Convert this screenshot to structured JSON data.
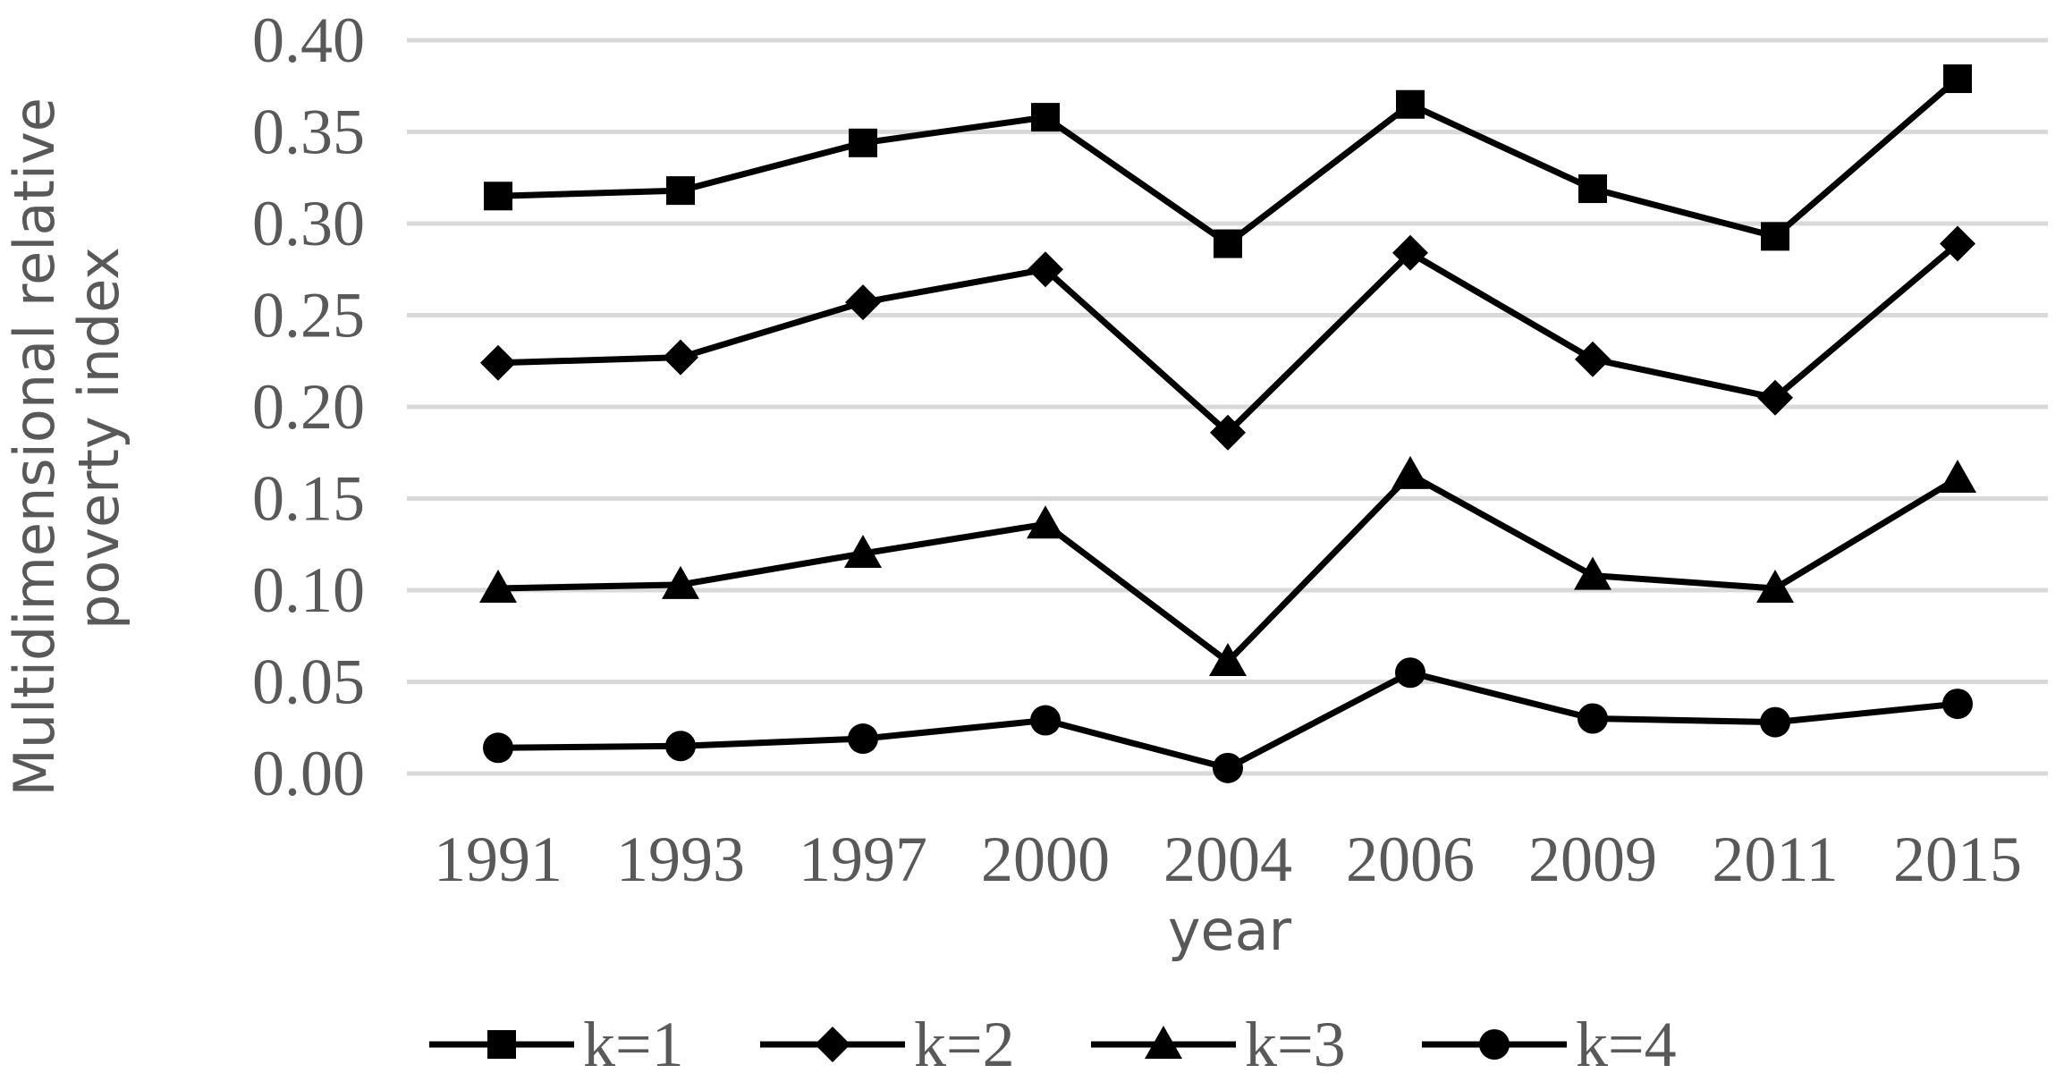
{
  "chart_data": {
    "type": "line",
    "xlabel": "year",
    "ylabel_lines": [
      "Multidimensional relative",
      "poverty index"
    ],
    "categories": [
      "1991",
      "1993",
      "1997",
      "2000",
      "2004",
      "2006",
      "2009",
      "2011",
      "2015"
    ],
    "ylim": [
      0,
      0.4
    ],
    "yticks": [
      "0.00",
      "0.05",
      "0.10",
      "0.15",
      "0.20",
      "0.25",
      "0.30",
      "0.35",
      "0.40"
    ],
    "grid": true,
    "legend_position": "bottom",
    "series": [
      {
        "name": "k=1",
        "marker": "square",
        "values": [
          0.315,
          0.318,
          0.344,
          0.358,
          0.289,
          0.365,
          0.319,
          0.293,
          0.379
        ]
      },
      {
        "name": "k=2",
        "marker": "diamond",
        "values": [
          0.224,
          0.227,
          0.257,
          0.275,
          0.186,
          0.284,
          0.226,
          0.205,
          0.289
        ]
      },
      {
        "name": "k=3",
        "marker": "triangle",
        "values": [
          0.101,
          0.103,
          0.12,
          0.136,
          0.061,
          0.163,
          0.108,
          0.101,
          0.161
        ]
      },
      {
        "name": "k=4",
        "marker": "circle",
        "values": [
          0.014,
          0.015,
          0.019,
          0.029,
          0.003,
          0.055,
          0.03,
          0.028,
          0.038
        ]
      }
    ],
    "colors": {
      "line": "#000000",
      "grid": "#d9d9d9",
      "text": "#595959"
    }
  }
}
